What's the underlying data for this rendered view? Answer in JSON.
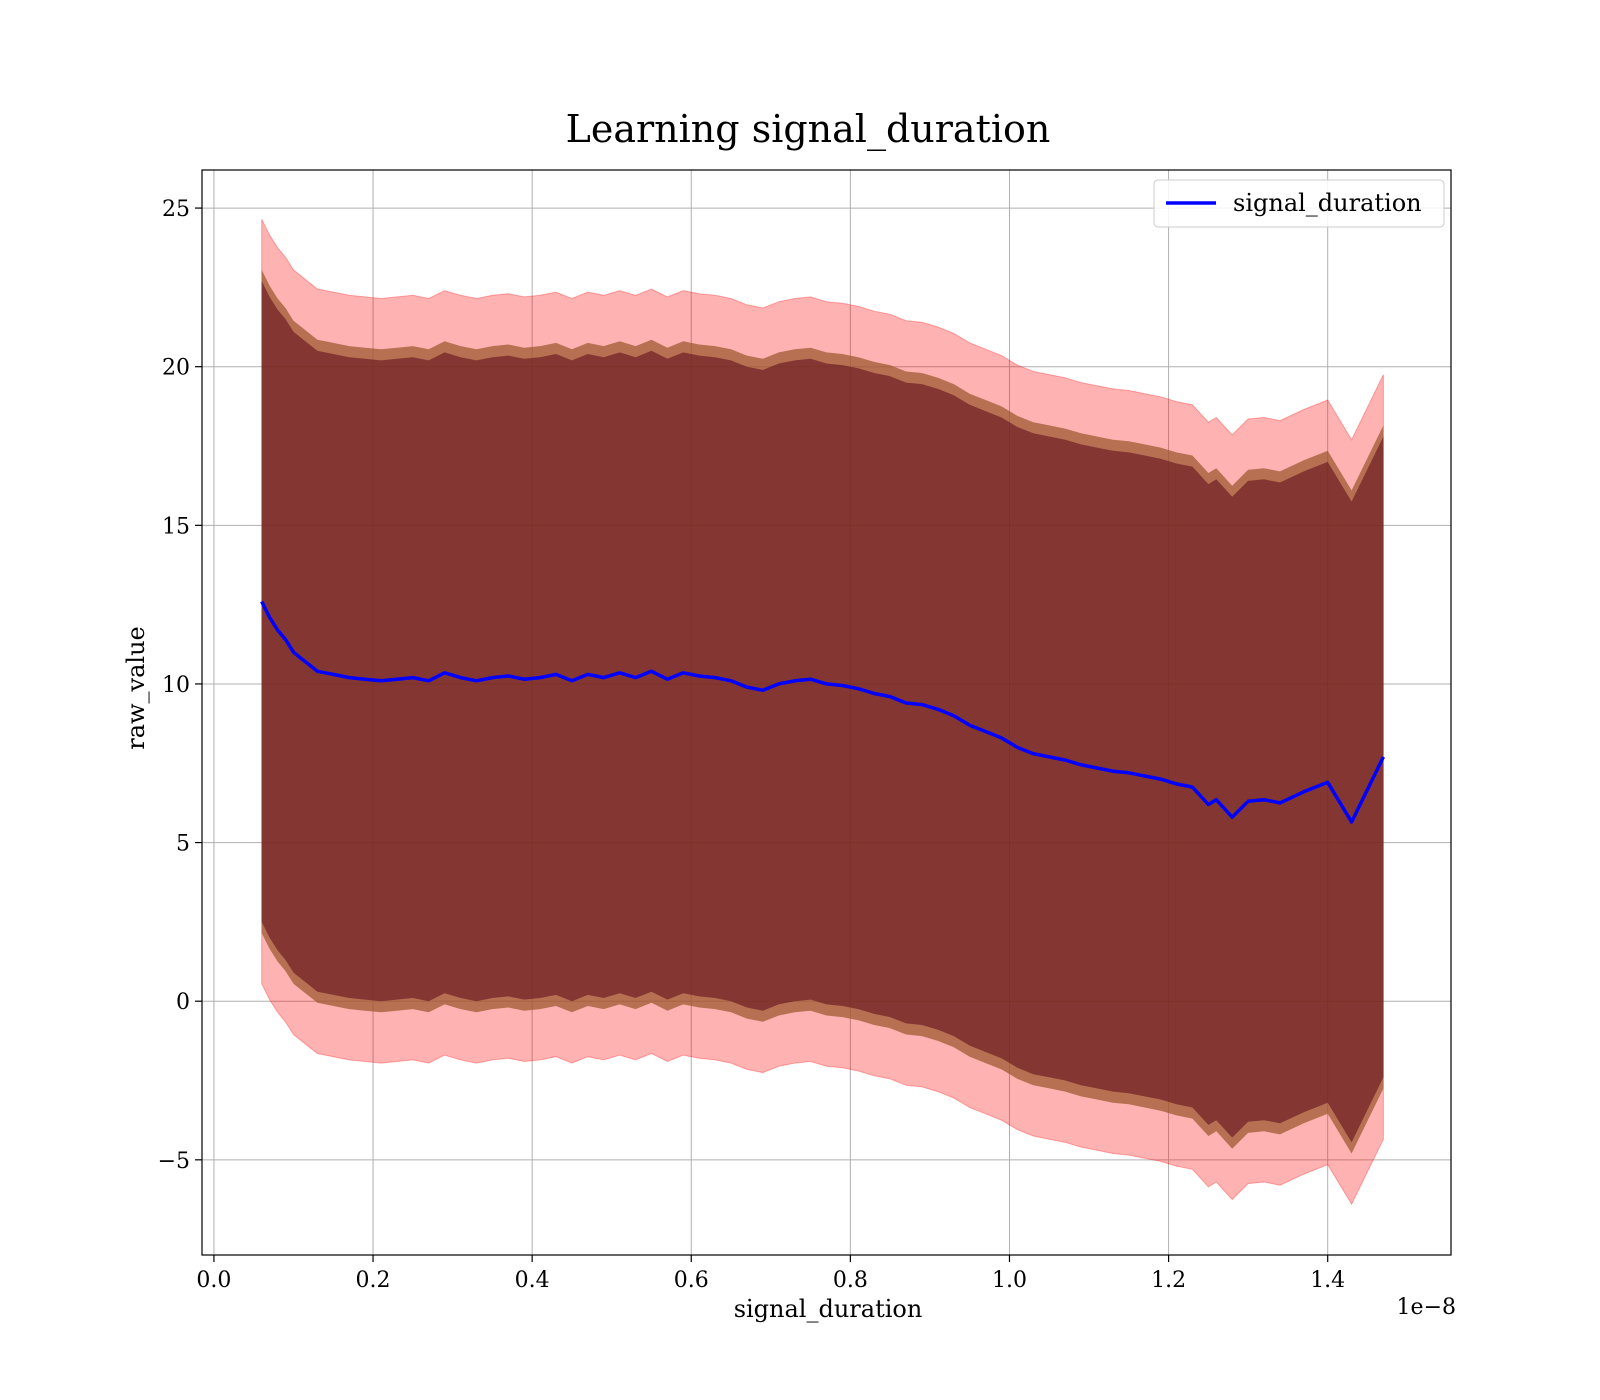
{
  "chart_data": {
    "type": "line",
    "title": "Learning signal_duration",
    "xlabel": "signal_duration",
    "ylabel": "raw_value",
    "x_offset_text": "1e−8",
    "xlim": [
      -0.015,
      1.555
    ],
    "ylim": [
      -8.0,
      26.2
    ],
    "x_ticks": [
      0.0,
      0.2,
      0.4,
      0.6,
      0.8,
      1.0,
      1.2,
      1.4
    ],
    "x_tick_labels": [
      "0.0",
      "0.2",
      "0.4",
      "0.6",
      "0.8",
      "1.0",
      "1.2",
      "1.4"
    ],
    "y_ticks": [
      -5,
      0,
      5,
      10,
      15,
      20,
      25
    ],
    "y_tick_labels": [
      "−5",
      "0",
      "5",
      "10",
      "15",
      "20",
      "25"
    ],
    "grid": true,
    "legend": {
      "position": "upper-right",
      "entries": [
        "signal_duration"
      ]
    },
    "colors": {
      "line": "#0000ff",
      "outer_band": "#ff0000",
      "inner_band": "#5a0a18",
      "band_edge": "#a05a32"
    },
    "series": [
      {
        "name": "signal_duration",
        "x": [
          0.06,
          0.07,
          0.08,
          0.09,
          0.1,
          0.11,
          0.12,
          0.13,
          0.14,
          0.15,
          0.17,
          0.19,
          0.21,
          0.23,
          0.25,
          0.27,
          0.29,
          0.31,
          0.33,
          0.35,
          0.37,
          0.39,
          0.41,
          0.43,
          0.45,
          0.47,
          0.49,
          0.51,
          0.53,
          0.55,
          0.57,
          0.59,
          0.61,
          0.63,
          0.65,
          0.67,
          0.69,
          0.71,
          0.73,
          0.75,
          0.77,
          0.79,
          0.81,
          0.83,
          0.85,
          0.87,
          0.89,
          0.91,
          0.93,
          0.95,
          0.97,
          0.99,
          1.01,
          1.03,
          1.05,
          1.07,
          1.09,
          1.11,
          1.13,
          1.15,
          1.17,
          1.19,
          1.21,
          1.23,
          1.25,
          1.26,
          1.28,
          1.3,
          1.32,
          1.34,
          1.37,
          1.4,
          1.43,
          1.47
        ],
        "y": [
          12.6,
          12.1,
          11.7,
          11.4,
          11.0,
          10.8,
          10.6,
          10.4,
          10.35,
          10.3,
          10.2,
          10.15,
          10.1,
          10.15,
          10.2,
          10.1,
          10.35,
          10.2,
          10.1,
          10.2,
          10.25,
          10.15,
          10.2,
          10.3,
          10.1,
          10.3,
          10.2,
          10.35,
          10.2,
          10.4,
          10.15,
          10.35,
          10.25,
          10.2,
          10.1,
          9.9,
          9.8,
          10.0,
          10.1,
          10.15,
          10.0,
          9.95,
          9.85,
          9.7,
          9.6,
          9.4,
          9.35,
          9.2,
          9.0,
          8.7,
          8.5,
          8.3,
          8.0,
          7.8,
          7.7,
          7.6,
          7.45,
          7.35,
          7.25,
          7.2,
          7.1,
          7.0,
          6.85,
          6.75,
          6.2,
          6.35,
          5.8,
          6.3,
          6.35,
          6.25,
          6.6,
          6.9,
          5.65,
          7.7
        ]
      }
    ],
    "bands": [
      {
        "name": "outer",
        "color": "#ff0000",
        "half_width": 12.05
      },
      {
        "name": "inner",
        "color": "#5a0a18",
        "half_width": 10.1
      }
    ]
  }
}
